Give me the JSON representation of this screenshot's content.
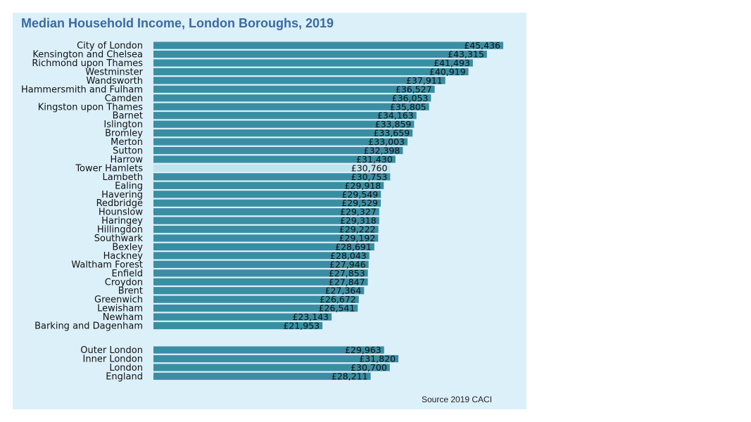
{
  "chart_data": {
    "type": "bar",
    "orientation": "horizontal",
    "title": "Median Household Income, London Boroughs, 2019",
    "source": "Source 2019 CACI",
    "value_prefix": "£",
    "xlabel": "",
    "ylabel": "",
    "xlim": [
      0,
      45436
    ],
    "grid": false,
    "legend": "none",
    "colors": {
      "bar": "#3a8ea3",
      "highlight_bar": "#bfe3ef",
      "background": "#dcf0fa",
      "title": "#3b6aa2"
    },
    "highlight_category": "Tower Hamlets",
    "groups": [
      {
        "categories": [
          "City of London",
          "Kensington and Chelsea",
          "Richmond upon Thames",
          "Westminster",
          "Wandsworth",
          "Hammersmith and Fulham",
          "Camden",
          "Kingston upon Thames",
          "Barnet",
          "Islington",
          "Bromley",
          "Merton",
          "Sutton",
          "Harrow",
          "Tower Hamlets",
          "Lambeth",
          "Ealing",
          "Havering",
          "Redbridge",
          "Hounslow",
          "Haringey",
          "Hillingdon",
          "Southwark",
          "Bexley",
          "Hackney",
          "Waltham Forest",
          "Enfield",
          "Croydon",
          "Brent",
          "Greenwich",
          "Lewisham",
          "Newham",
          "Barking and Dagenham"
        ],
        "values": [
          45436,
          43315,
          41493,
          40919,
          37911,
          36527,
          36053,
          35805,
          34163,
          33859,
          33659,
          33003,
          32398,
          31430,
          30760,
          30753,
          29918,
          29549,
          29529,
          29327,
          29318,
          29222,
          29192,
          28691,
          28043,
          27946,
          27853,
          27847,
          27364,
          26672,
          26541,
          23143,
          21953
        ],
        "value_labels": [
          "£45,436",
          "£43,315",
          "£41,493",
          "£40,919",
          "£37,911",
          "£36,527",
          "£36,053",
          "£35,805",
          "£34,163",
          "£33,859",
          "£33,659",
          "£33,003",
          "£32,398",
          "£31,430",
          "£30,760",
          "£30,753",
          "£29,918",
          "£29,549",
          "£29,529",
          "£29,327",
          "£29,318",
          "£29,222",
          "£29,192",
          "£28,691",
          "£28,043",
          "£27,946",
          "£27,853",
          "£27,847",
          "£27,364",
          "£26,672",
          "£26,541",
          "£23,143",
          "£21,953"
        ]
      },
      {
        "categories": [
          "Outer London",
          "Inner London",
          "London",
          "England"
        ],
        "values": [
          29963,
          31820,
          30700,
          28211
        ],
        "value_labels": [
          "£29,963",
          "£31,820",
          "£30,700",
          "£28,211"
        ]
      }
    ]
  }
}
